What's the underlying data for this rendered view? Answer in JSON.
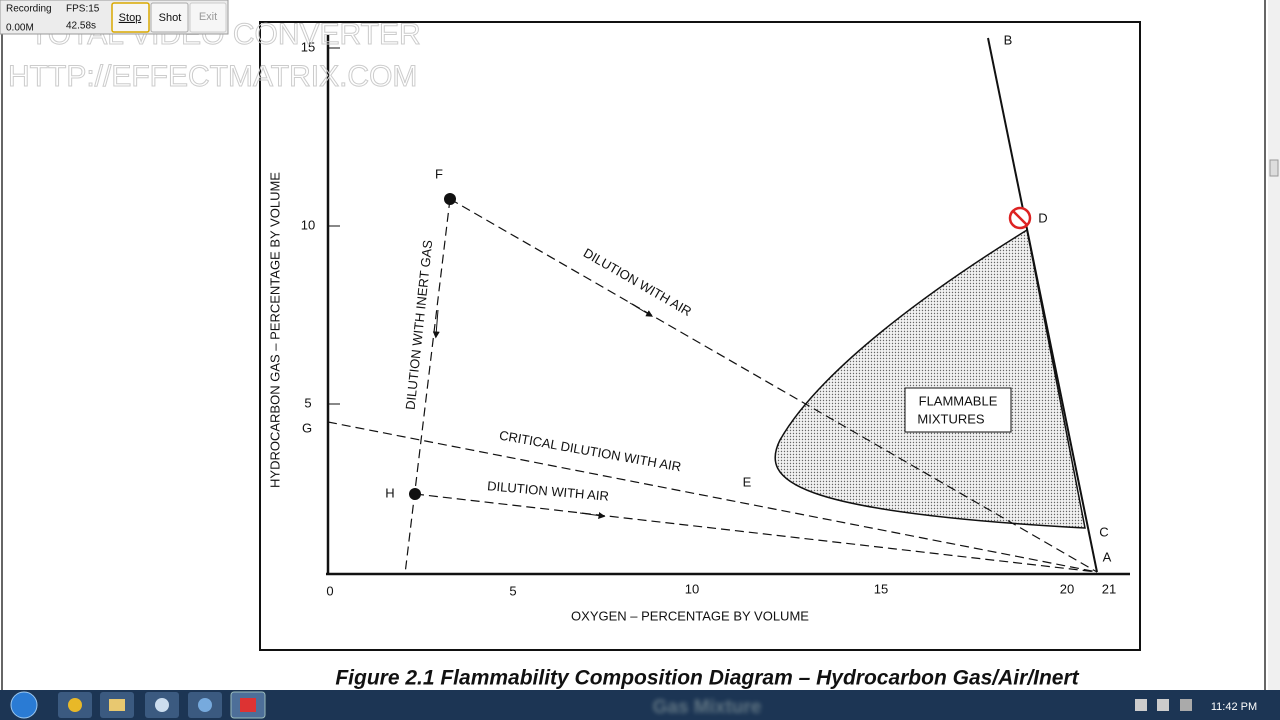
{
  "recorder": {
    "status": "Recording",
    "size": "0.00M",
    "fps": "FPS:15",
    "time": "42.58s",
    "buttons": [
      "Stop",
      "Shot",
      "Exit"
    ]
  },
  "watermark": [
    "TOTAL VIDEO CONVERTER",
    "HTTP://EFFECTMATRIX.COM"
  ],
  "diagram": {
    "y_axis_label": "HYDROCARBON GAS – PERCENTAGE BY VOLUME",
    "x_axis_label": "OXYGEN – PERCENTAGE BY VOLUME",
    "y_ticks": [
      "15",
      "10",
      "5"
    ],
    "x_ticks": [
      "0",
      "5",
      "10",
      "15",
      "20",
      "21"
    ],
    "points": [
      "A",
      "B",
      "C",
      "D",
      "E",
      "F",
      "G",
      "H"
    ],
    "annotations": [
      "DILUTION WITH AIR",
      "DILUTION WITH INERT GAS",
      "CRITICAL DILUTION WITH AIR",
      "DILUTION WITH AIR"
    ],
    "region": [
      "FLAMMABLE",
      "MIXTURES"
    ]
  },
  "caption": [
    "Figure 2.1 Flammability Composition Diagram – Hydrocarbon Gas/Air/Inert",
    "Gas Mixture"
  ],
  "taskbar": {
    "clock": "11:42 PM"
  }
}
